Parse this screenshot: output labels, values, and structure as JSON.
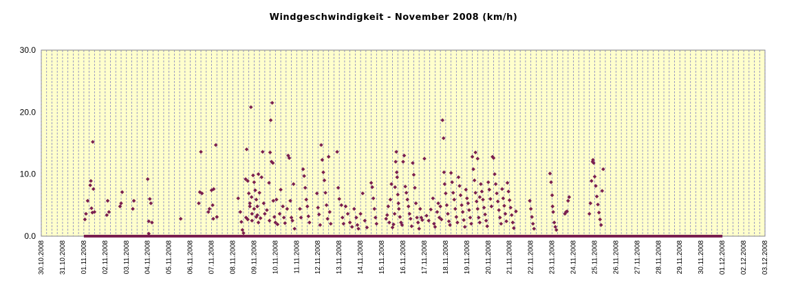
{
  "chart_data": {
    "type": "scatter",
    "title": "Windgeschwindigkeit - November 2008 (km/h)",
    "xlabel": "",
    "ylabel": "",
    "ylim": [
      0,
      30
    ],
    "yticks": [
      "0.0",
      "10.0",
      "20.0",
      "30.0"
    ],
    "grid": "vertical-dashed",
    "legend": "none",
    "x_tick_labels": [
      "30.10.2008",
      "31.10.2008",
      "01.11.2008",
      "02.11.2008",
      "03.11.2008",
      "04.11.2008",
      "05.11.2008",
      "06.11.2008",
      "07.11.2008",
      "08.11.2008",
      "09.11.2008",
      "10.11.2008",
      "11.11.2008",
      "12.11.2008",
      "13.11.2008",
      "14.11.2008",
      "15.11.2008",
      "16.11.2008",
      "17.11.2008",
      "18.11.2008",
      "19.11.2008",
      "20.11.2008",
      "21.11.2008",
      "22.11.2008",
      "23.11.2008",
      "24.11.2008",
      "25.11.2008",
      "26.11.2008",
      "27.11.2008",
      "28.11.2008",
      "29.11.2008",
      "30.11.2008",
      "01.12.2008",
      "02.12.2008",
      "03.12.2008"
    ],
    "x_start_date": "30.10.2008",
    "x_end_date": "03.12.2008",
    "colors": {
      "plot_background": "#ffffcc",
      "marker": "#7a1f4f",
      "grid": "#8080c0"
    },
    "series": [
      {
        "values": [
          [
            0.05,
            2.7
          ],
          [
            0.1,
            3.6
          ],
          [
            0.18,
            5.7
          ],
          [
            0.3,
            8.2
          ],
          [
            0.33,
            8.9
          ],
          [
            0.36,
            4.5
          ],
          [
            0.4,
            3.8
          ],
          [
            0.42,
            15.2
          ],
          [
            0.45,
            7.6
          ],
          [
            0.5,
            3.9
          ],
          [
            1.08,
            3.4
          ],
          [
            1.12,
            5.7
          ],
          [
            1.18,
            3.9
          ],
          [
            1.7,
            4.8
          ],
          [
            1.75,
            5.3
          ],
          [
            1.8,
            7.1
          ],
          [
            2.3,
            4.4
          ],
          [
            2.35,
            5.7
          ],
          [
            3.0,
            9.2
          ],
          [
            3.1,
            6.0
          ],
          [
            3.15,
            5.3
          ],
          [
            3.05,
            2.4
          ],
          [
            3.2,
            2.2
          ],
          [
            3.05,
            0.4
          ],
          [
            4.55,
            2.8
          ],
          [
            5.4,
            5.3
          ],
          [
            5.45,
            7.1
          ],
          [
            5.5,
            13.6
          ],
          [
            5.55,
            6.9
          ],
          [
            5.85,
            3.9
          ],
          [
            5.9,
            4.4
          ],
          [
            6.0,
            7.4
          ],
          [
            6.05,
            5.0
          ],
          [
            6.08,
            2.8
          ],
          [
            6.1,
            7.6
          ],
          [
            6.2,
            14.7
          ],
          [
            6.25,
            3.1
          ],
          [
            7.25,
            6.1
          ],
          [
            7.35,
            3.9
          ],
          [
            7.4,
            2.3
          ],
          [
            7.45,
            1.0
          ],
          [
            7.5,
            0.5
          ],
          [
            7.65,
            14.0
          ],
          [
            7.7,
            8.9
          ],
          [
            7.75,
            6.9
          ],
          [
            7.8,
            5.3
          ],
          [
            7.85,
            20.8
          ],
          [
            7.9,
            3.6
          ],
          [
            7.95,
            9.8
          ],
          [
            8.0,
            4.4
          ],
          [
            8.05,
            7.4
          ],
          [
            8.1,
            5.9
          ],
          [
            8.15,
            3.4
          ],
          [
            8.2,
            10.0
          ],
          [
            7.6,
            9.2
          ],
          [
            7.62,
            3.0
          ],
          [
            7.7,
            2.7
          ],
          [
            7.8,
            4.8
          ],
          [
            7.88,
            6.3
          ],
          [
            7.9,
            2.5
          ],
          [
            8.0,
            8.7
          ],
          [
            8.1,
            3.1
          ],
          [
            8.15,
            4.8
          ],
          [
            8.2,
            2.2
          ],
          [
            8.25,
            7.0
          ],
          [
            8.3,
            2.9
          ],
          [
            8.35,
            9.5
          ],
          [
            8.4,
            13.6
          ],
          [
            8.45,
            5.3
          ],
          [
            8.5,
            3.6
          ],
          [
            8.6,
            4.2
          ],
          [
            8.7,
            8.6
          ],
          [
            8.72,
            2.5
          ],
          [
            8.75,
            13.5
          ],
          [
            8.78,
            18.7
          ],
          [
            8.82,
            12.0
          ],
          [
            8.85,
            21.5
          ],
          [
            8.88,
            11.8
          ],
          [
            8.9,
            5.7
          ],
          [
            8.95,
            3.1
          ],
          [
            9.0,
            2.2
          ],
          [
            9.05,
            5.9
          ],
          [
            9.1,
            1.9
          ],
          [
            9.2,
            3.6
          ],
          [
            9.25,
            7.5
          ],
          [
            9.35,
            4.8
          ],
          [
            9.4,
            3.0
          ],
          [
            9.45,
            2.1
          ],
          [
            9.55,
            4.4
          ],
          [
            9.6,
            13.0
          ],
          [
            9.65,
            12.6
          ],
          [
            9.7,
            5.7
          ],
          [
            9.75,
            3.0
          ],
          [
            9.8,
            2.5
          ],
          [
            9.85,
            8.4
          ],
          [
            9.9,
            1.2
          ],
          [
            10.15,
            4.4
          ],
          [
            10.2,
            3.0
          ],
          [
            10.3,
            10.8
          ],
          [
            10.35,
            9.7
          ],
          [
            10.4,
            7.8
          ],
          [
            10.45,
            5.9
          ],
          [
            10.5,
            4.8
          ],
          [
            10.55,
            3.2
          ],
          [
            10.6,
            2.2
          ],
          [
            10.95,
            6.9
          ],
          [
            11.0,
            4.6
          ],
          [
            11.05,
            3.5
          ],
          [
            11.1,
            1.8
          ],
          [
            11.15,
            14.7
          ],
          [
            11.2,
            12.3
          ],
          [
            11.25,
            10.3
          ],
          [
            11.3,
            9.0
          ],
          [
            11.35,
            7.0
          ],
          [
            11.4,
            5.0
          ],
          [
            11.45,
            2.8
          ],
          [
            11.5,
            12.8
          ],
          [
            11.55,
            3.9
          ],
          [
            11.6,
            2.0
          ],
          [
            11.9,
            13.6
          ],
          [
            11.95,
            7.8
          ],
          [
            12.0,
            6.0
          ],
          [
            12.1,
            5.0
          ],
          [
            12.15,
            3.0
          ],
          [
            12.2,
            2.0
          ],
          [
            12.3,
            4.8
          ],
          [
            12.4,
            3.6
          ],
          [
            12.5,
            2.2
          ],
          [
            12.6,
            1.5
          ],
          [
            12.7,
            4.4
          ],
          [
            12.8,
            3.0
          ],
          [
            12.85,
            1.8
          ],
          [
            12.9,
            1.2
          ],
          [
            13.0,
            3.6
          ],
          [
            13.1,
            6.9
          ],
          [
            13.2,
            2.5
          ],
          [
            13.3,
            1.4
          ],
          [
            13.5,
            8.6
          ],
          [
            13.55,
            7.9
          ],
          [
            13.6,
            6.1
          ],
          [
            13.65,
            4.4
          ],
          [
            13.7,
            3.0
          ],
          [
            13.75,
            2.0
          ],
          [
            14.2,
            2.8
          ],
          [
            14.25,
            3.4
          ],
          [
            14.3,
            4.8
          ],
          [
            14.35,
            2.2
          ],
          [
            14.4,
            5.9
          ],
          [
            14.45,
            8.4
          ],
          [
            14.5,
            1.4
          ],
          [
            14.55,
            1.9
          ],
          [
            14.6,
            3.6
          ],
          [
            14.62,
            7.9
          ],
          [
            14.65,
            12.0
          ],
          [
            14.68,
            13.6
          ],
          [
            14.7,
            10.3
          ],
          [
            14.72,
            9.5
          ],
          [
            14.75,
            6.7
          ],
          [
            14.78,
            5.3
          ],
          [
            14.8,
            4.4
          ],
          [
            14.85,
            3.1
          ],
          [
            14.9,
            2.2
          ],
          [
            14.95,
            1.8
          ],
          [
            15.0,
            12.0
          ],
          [
            15.05,
            13.0
          ],
          [
            15.1,
            8.0
          ],
          [
            15.15,
            7.0
          ],
          [
            15.2,
            5.9
          ],
          [
            15.25,
            4.8
          ],
          [
            15.3,
            3.6
          ],
          [
            15.35,
            2.8
          ],
          [
            15.4,
            1.6
          ],
          [
            15.45,
            11.8
          ],
          [
            15.5,
            9.9
          ],
          [
            15.55,
            7.8
          ],
          [
            15.6,
            5.3
          ],
          [
            15.65,
            3.0
          ],
          [
            15.7,
            2.2
          ],
          [
            15.75,
            1.2
          ],
          [
            15.8,
            4.4
          ],
          [
            15.85,
            3.0
          ],
          [
            15.9,
            2.6
          ],
          [
            16.0,
            12.5
          ],
          [
            16.1,
            3.3
          ],
          [
            16.2,
            2.5
          ],
          [
            16.3,
            4.3
          ],
          [
            16.4,
            6.1
          ],
          [
            16.45,
            2.0
          ],
          [
            16.5,
            1.5
          ],
          [
            16.6,
            3.9
          ],
          [
            16.65,
            5.3
          ],
          [
            16.7,
            3.0
          ],
          [
            16.75,
            4.8
          ],
          [
            16.8,
            2.7
          ],
          [
            16.85,
            18.7
          ],
          [
            16.9,
            15.8
          ],
          [
            16.92,
            10.3
          ],
          [
            16.95,
            8.4
          ],
          [
            17.0,
            6.9
          ],
          [
            17.05,
            5.0
          ],
          [
            17.1,
            3.6
          ],
          [
            17.15,
            2.4
          ],
          [
            17.2,
            1.8
          ],
          [
            17.25,
            10.2
          ],
          [
            17.3,
            8.7
          ],
          [
            17.35,
            7.0
          ],
          [
            17.4,
            5.9
          ],
          [
            17.45,
            4.4
          ],
          [
            17.5,
            3.1
          ],
          [
            17.55,
            2.2
          ],
          [
            17.6,
            9.5
          ],
          [
            17.65,
            8.1
          ],
          [
            17.7,
            6.6
          ],
          [
            17.75,
            5.0
          ],
          [
            17.8,
            3.9
          ],
          [
            17.85,
            2.6
          ],
          [
            17.9,
            1.5
          ],
          [
            17.95,
            7.5
          ],
          [
            18.0,
            6.1
          ],
          [
            18.05,
            5.3
          ],
          [
            18.1,
            4.2
          ],
          [
            18.15,
            3.0
          ],
          [
            18.2,
            2.0
          ],
          [
            18.25,
            12.8
          ],
          [
            18.3,
            10.8
          ],
          [
            18.35,
            9.0
          ],
          [
            18.4,
            7.0
          ],
          [
            18.45,
            5.6
          ],
          [
            18.5,
            4.4
          ],
          [
            18.55,
            3.0
          ],
          [
            18.6,
            2.2
          ],
          [
            18.4,
            13.5
          ],
          [
            18.5,
            12.5
          ],
          [
            18.6,
            6.3
          ],
          [
            18.65,
            8.4
          ],
          [
            18.7,
            7.2
          ],
          [
            18.75,
            5.9
          ],
          [
            18.8,
            4.6
          ],
          [
            18.85,
            3.5
          ],
          [
            18.9,
            2.5
          ],
          [
            18.95,
            1.6
          ],
          [
            19.0,
            8.7
          ],
          [
            19.05,
            7.5
          ],
          [
            19.1,
            6.0
          ],
          [
            19.15,
            4.8
          ],
          [
            19.2,
            12.8
          ],
          [
            19.25,
            12.6
          ],
          [
            19.3,
            10.0
          ],
          [
            19.35,
            8.4
          ],
          [
            19.4,
            6.9
          ],
          [
            19.45,
            5.6
          ],
          [
            19.5,
            4.2
          ],
          [
            19.55,
            3.0
          ],
          [
            19.6,
            2.0
          ],
          [
            19.65,
            7.6
          ],
          [
            19.7,
            6.1
          ],
          [
            19.75,
            4.9
          ],
          [
            19.8,
            3.6
          ],
          [
            19.85,
            2.4
          ],
          [
            19.9,
            8.6
          ],
          [
            19.95,
            7.2
          ],
          [
            20.0,
            5.8
          ],
          [
            20.05,
            4.6
          ],
          [
            20.1,
            3.4
          ],
          [
            20.15,
            2.2
          ],
          [
            20.2,
            1.3
          ],
          [
            20.3,
            4.0
          ],
          [
            20.95,
            5.7
          ],
          [
            21.0,
            4.4
          ],
          [
            21.05,
            3.1
          ],
          [
            21.1,
            2.0
          ],
          [
            21.15,
            1.2
          ],
          [
            21.9,
            10.1
          ],
          [
            21.95,
            8.7
          ],
          [
            22.0,
            6.6
          ],
          [
            22.02,
            4.8
          ],
          [
            22.05,
            3.9
          ],
          [
            22.1,
            2.2
          ],
          [
            22.15,
            1.5
          ],
          [
            22.2,
            1.0
          ],
          [
            22.6,
            3.6
          ],
          [
            22.65,
            3.9
          ],
          [
            22.7,
            4.0
          ],
          [
            22.75,
            5.7
          ],
          [
            22.8,
            6.3
          ],
          [
            23.75,
            3.6
          ],
          [
            23.8,
            5.3
          ],
          [
            23.85,
            8.9
          ],
          [
            23.9,
            12.0
          ],
          [
            23.92,
            12.3
          ],
          [
            23.95,
            11.8
          ],
          [
            24.0,
            9.6
          ],
          [
            24.05,
            8.1
          ],
          [
            24.1,
            6.4
          ],
          [
            24.15,
            5.1
          ],
          [
            24.2,
            3.8
          ],
          [
            24.25,
            2.7
          ],
          [
            24.3,
            1.8
          ],
          [
            24.35,
            7.3
          ],
          [
            24.4,
            10.8
          ]
        ],
        "baseline_value": 0.0
      }
    ]
  }
}
